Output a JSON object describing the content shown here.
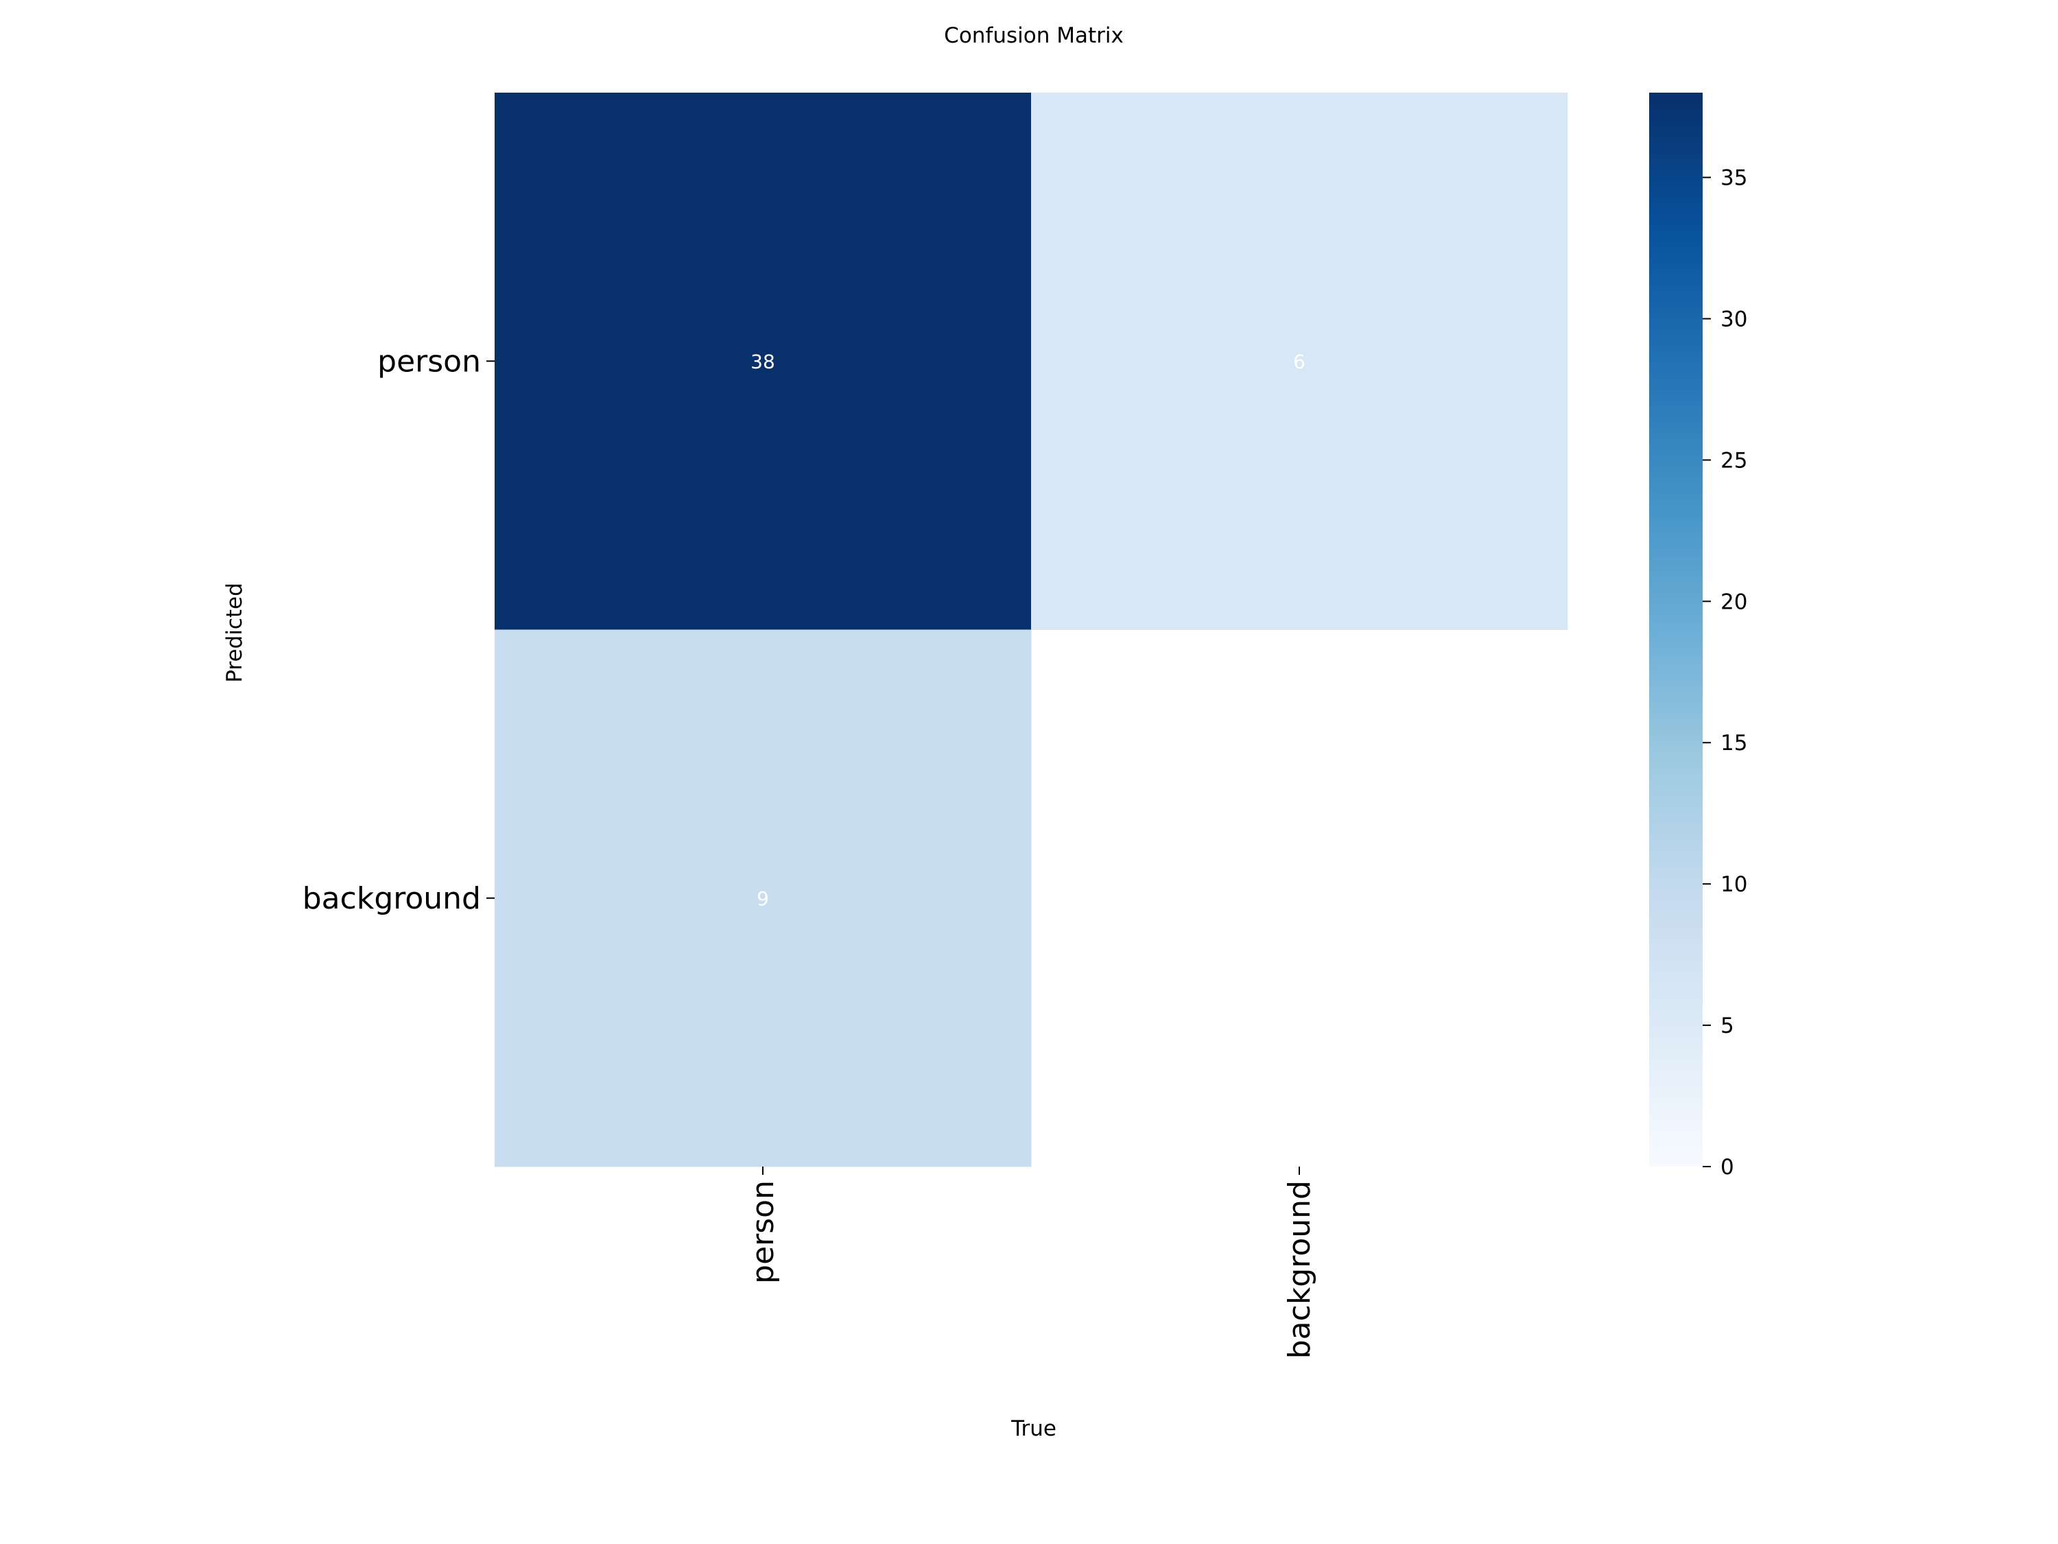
{
  "chart_data": {
    "type": "heatmap",
    "title": "Confusion Matrix",
    "xlabel": "True",
    "ylabel": "Predicted",
    "x_categories": [
      "person",
      "background"
    ],
    "y_categories": [
      "person",
      "background"
    ],
    "values": [
      [
        38,
        6
      ],
      [
        9,
        null
      ]
    ],
    "colormap": "Blues",
    "colorbar": {
      "range": [
        0,
        38
      ],
      "ticks": [
        0,
        5,
        10,
        15,
        20,
        25,
        30,
        35
      ]
    },
    "annotation_color": "#ffffff"
  }
}
